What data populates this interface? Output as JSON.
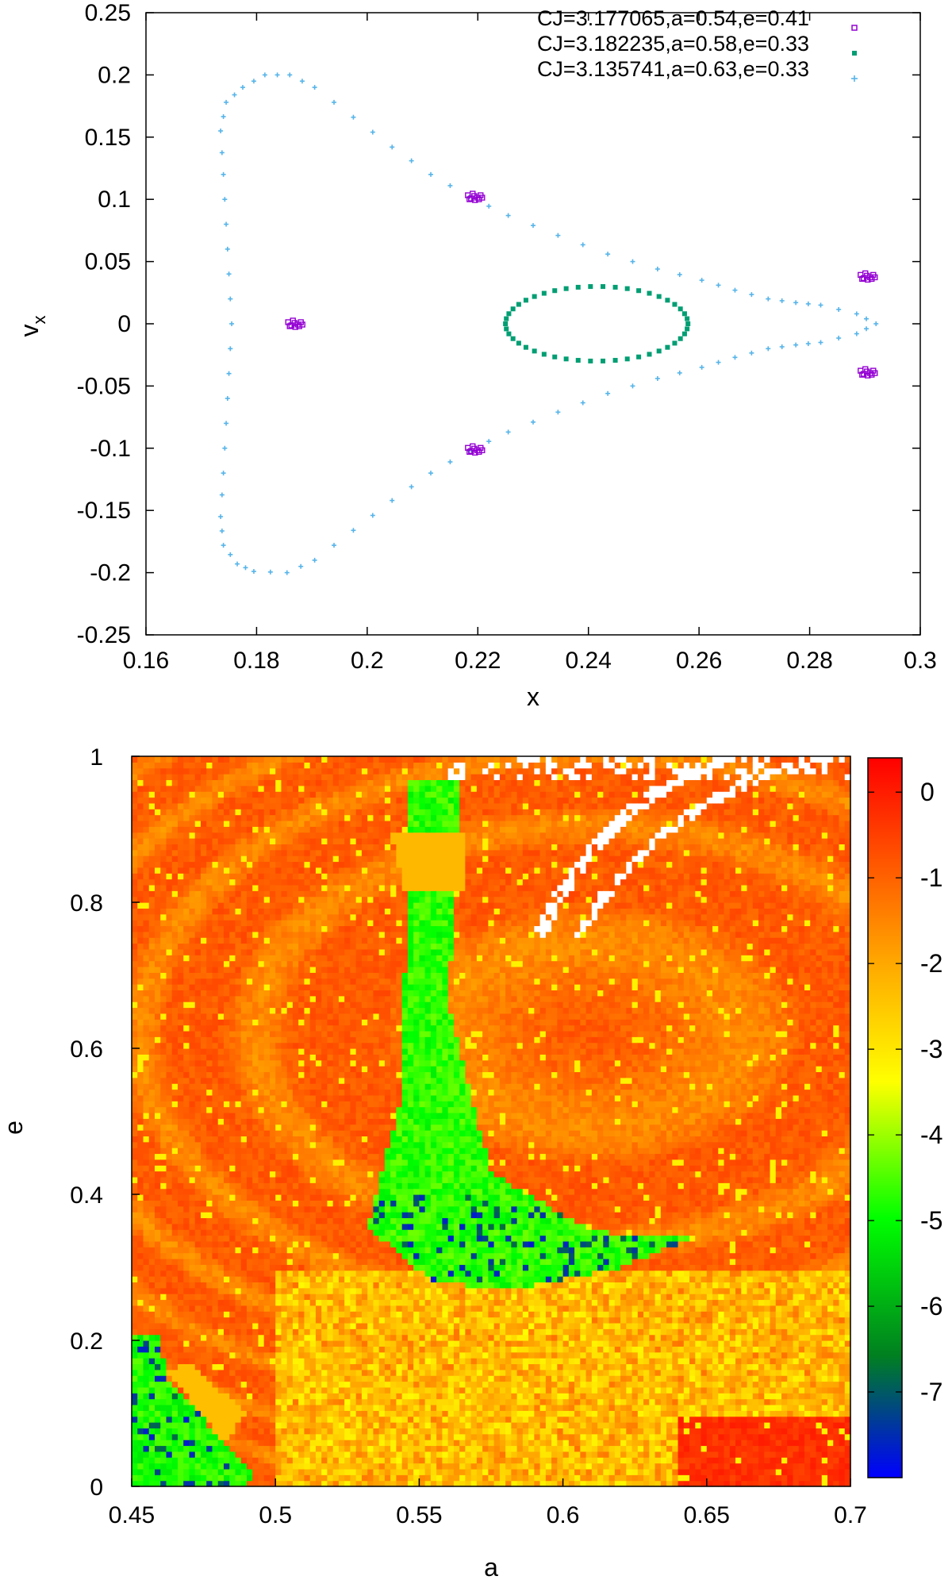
{
  "chart_data": [
    {
      "type": "scatter",
      "title": "",
      "xlabel": "x",
      "ylabel": "v",
      "ylabel_subscript": "x",
      "xlim": [
        0.16,
        0.3
      ],
      "ylim": [
        -0.25,
        0.25
      ],
      "xticks": [
        "0.16",
        "0.18",
        "0.2",
        "0.22",
        "0.24",
        "0.26",
        "0.28",
        "0.3"
      ],
      "yticks": [
        "0.25",
        "0.2",
        "0.15",
        "0.1",
        "0.05",
        "0",
        "-0.05",
        "-0.1",
        "-0.15",
        "-0.2",
        "-0.25"
      ],
      "legend_position": "top-right",
      "series": [
        {
          "name": "CJ=3.177065,a=0.54,e=0.41",
          "color": "#9400d3",
          "marker": "open-square",
          "clusters": [
            [
              0.187,
              0.0
            ],
            [
              0.2195,
              0.102
            ],
            [
              0.2195,
              -0.101
            ],
            [
              0.2905,
              0.038
            ],
            [
              0.2905,
              -0.039
            ]
          ]
        },
        {
          "name": "CJ=3.182235,a=0.58,e=0.33",
          "color": "#009e73",
          "marker": "filled-square",
          "ellipse": {
            "center": [
              0.2415,
              0.0
            ],
            "semi_x": 0.0165,
            "semi_y": 0.03
          }
        },
        {
          "name": "CJ=3.135741,a=0.63,e=0.33",
          "color": "#56b4e9",
          "marker": "plus",
          "path": [
            [
              0.292,
              0.0
            ],
            [
              0.2885,
              0.008
            ],
            [
              0.282,
              0.015
            ],
            [
              0.2775,
              0.017
            ],
            [
              0.2725,
              0.02
            ],
            [
              0.2665,
              0.027
            ],
            [
              0.2605,
              0.035
            ],
            [
              0.2525,
              0.044
            ],
            [
              0.2435,
              0.056
            ],
            [
              0.2345,
              0.071
            ],
            [
              0.2255,
              0.087
            ],
            [
              0.2185,
              0.102
            ],
            [
              0.2115,
              0.12
            ],
            [
              0.2045,
              0.142
            ],
            [
              0.1975,
              0.166
            ],
            [
              0.1905,
              0.19
            ],
            [
              0.186,
              0.2
            ],
            [
              0.1815,
              0.2
            ],
            [
              0.1775,
              0.19
            ],
            [
              0.1745,
              0.178
            ],
            [
              0.1735,
              0.155
            ],
            [
              0.174,
              0.12
            ],
            [
              0.1745,
              0.08
            ],
            [
              0.175,
              0.04
            ],
            [
              0.1755,
              0.0
            ],
            [
              0.175,
              -0.04
            ],
            [
              0.1745,
              -0.08
            ],
            [
              0.174,
              -0.12
            ],
            [
              0.1735,
              -0.155
            ],
            [
              0.174,
              -0.178
            ],
            [
              0.1765,
              -0.193
            ],
            [
              0.1795,
              -0.199
            ],
            [
              0.1855,
              -0.2
            ],
            [
              0.1905,
              -0.19
            ],
            [
              0.1975,
              -0.166
            ],
            [
              0.2045,
              -0.142
            ],
            [
              0.2115,
              -0.12
            ],
            [
              0.2185,
              -0.102
            ],
            [
              0.2255,
              -0.087
            ],
            [
              0.2345,
              -0.071
            ],
            [
              0.2435,
              -0.056
            ],
            [
              0.2525,
              -0.044
            ],
            [
              0.2605,
              -0.035
            ],
            [
              0.2665,
              -0.027
            ],
            [
              0.2725,
              -0.02
            ],
            [
              0.2775,
              -0.017
            ],
            [
              0.282,
              -0.015
            ],
            [
              0.2885,
              -0.008
            ],
            [
              0.292,
              0.0
            ]
          ]
        }
      ]
    },
    {
      "type": "heatmap",
      "title": "",
      "xlabel": "a",
      "ylabel": "e",
      "xlim": [
        0.45,
        0.7
      ],
      "ylim": [
        0,
        1
      ],
      "xticks": [
        "0.45",
        "0.5",
        "0.55",
        "0.6",
        "0.65",
        "0.7"
      ],
      "yticks": [
        "1",
        "0.8",
        "0.6",
        "0.4",
        "0.2",
        "0"
      ],
      "colorbar": {
        "range": [
          -8,
          0.4
        ],
        "ticks": [
          "0",
          "-1",
          "-2",
          "-3",
          "-4",
          "-5",
          "-6",
          "-7"
        ],
        "colors": [
          "#0000ff",
          "#00a000",
          "#00ff00",
          "#ffff00",
          "#ffa500",
          "#ff0000"
        ]
      },
      "grid": {
        "a_steps": 125,
        "e_steps": 125
      },
      "regions": [
        {
          "description": "stable green band",
          "value": -4.6,
          "center": [
            0.5565,
            0.88
          ],
          "points": [
            [
              0.547,
              0.97
            ],
            [
              0.565,
              0.97
            ],
            [
              0.56,
              0.66
            ],
            [
              0.575,
              0.43
            ],
            [
              0.61,
              0.35
            ],
            [
              0.645,
              0.34
            ],
            [
              0.62,
              0.3
            ],
            [
              0.583,
              0.27
            ],
            [
              0.555,
              0.28
            ],
            [
              0.532,
              0.355
            ],
            [
              0.543,
              0.52
            ],
            [
              0.545,
              0.7
            ]
          ]
        },
        {
          "description": "orange plateau",
          "value": -2.3,
          "points": [
            [
              0.54,
              0.9
            ],
            [
              0.565,
              0.9
            ],
            [
              0.567,
              0.82
            ],
            [
              0.545,
              0.82
            ]
          ]
        },
        {
          "description": "green corner",
          "value": -4.8,
          "points": [
            [
              0.45,
              0.21
            ],
            [
              0.46,
              0.21
            ],
            [
              0.462,
              0.15
            ],
            [
              0.48,
              0.07
            ],
            [
              0.492,
              0.02
            ],
            [
              0.49,
              0.0
            ],
            [
              0.45,
              0.0
            ]
          ]
        },
        {
          "description": "orange corner patch",
          "value": -2.4,
          "points": [
            [
              0.462,
              0.16
            ],
            [
              0.47,
              0.17
            ],
            [
              0.49,
              0.1
            ],
            [
              0.482,
              0.06
            ]
          ]
        }
      ],
      "gaps": "white unfilled cells along arcs near upper right"
    }
  ]
}
